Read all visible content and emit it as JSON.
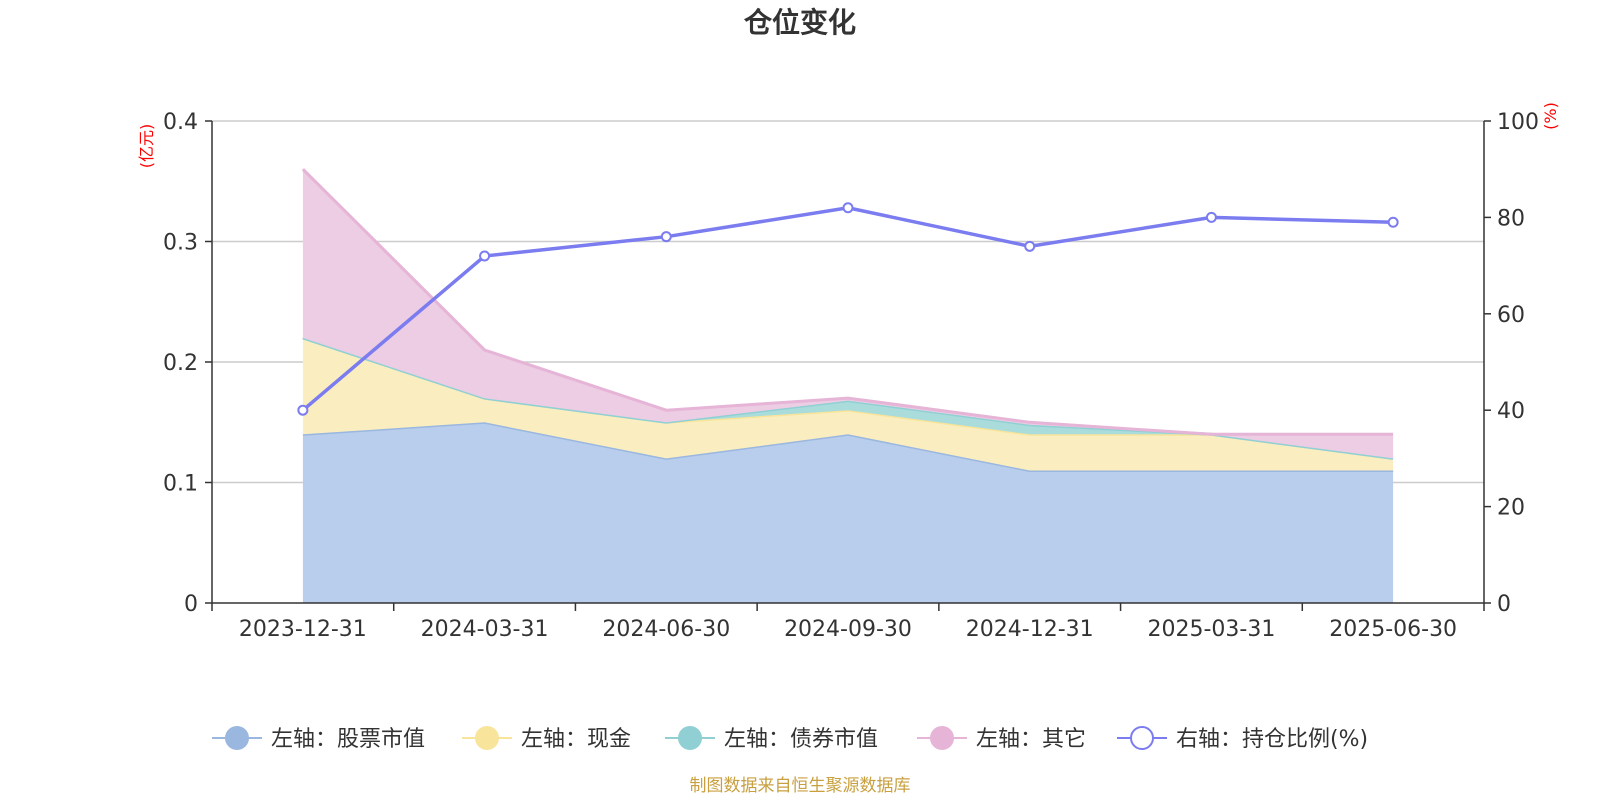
{
  "chart_data": {
    "type": "area",
    "title": "仓位变化",
    "left_unit": "(亿元)",
    "right_unit": "(%)",
    "categories": [
      "2023-12-31",
      "2024-03-31",
      "2024-06-30",
      "2024-09-30",
      "2024-12-31",
      "2025-03-31",
      "2025-06-30"
    ],
    "left_ylim": [
      0,
      0.4
    ],
    "left_ticks": [
      "0",
      "0.1",
      "0.2",
      "0.3",
      "0.4"
    ],
    "right_ylim": [
      0,
      100
    ],
    "right_ticks": [
      "0",
      "20",
      "40",
      "60",
      "80",
      "100"
    ],
    "stacked": true,
    "grid": true,
    "legend_position": "bottom",
    "series": [
      {
        "name": "左轴：股票市值",
        "axis": "left",
        "type": "area",
        "color": "#9ab7e0",
        "fill": "#b9cdec",
        "values": [
          0.14,
          0.15,
          0.12,
          0.14,
          0.11,
          0.11,
          0.11
        ]
      },
      {
        "name": "左轴：现金",
        "axis": "left",
        "type": "area",
        "color": "#f8e49a",
        "fill": "#faeec0",
        "values": [
          0.08,
          0.02,
          0.03,
          0.02,
          0.03,
          0.03,
          0.01
        ]
      },
      {
        "name": "左轴：债券市值",
        "axis": "left",
        "type": "area",
        "color": "#90d0d4",
        "fill": "#aadcdc",
        "values": [
          0,
          0,
          0,
          0.008,
          0.008,
          0,
          0
        ]
      },
      {
        "name": "左轴：其它",
        "axis": "left",
        "type": "area",
        "color": "#e6b4d6",
        "fill": "#edcde3",
        "values": [
          0.14,
          0.04,
          0.01,
          0.002,
          0.002,
          0,
          0.02
        ]
      },
      {
        "name": "右轴：持仓比例(%)",
        "axis": "right",
        "type": "line",
        "color": "#7b7cef",
        "values": [
          40,
          72,
          76,
          82,
          74,
          80,
          79
        ]
      }
    ],
    "source": "制图数据来自恒生聚源数据库"
  }
}
